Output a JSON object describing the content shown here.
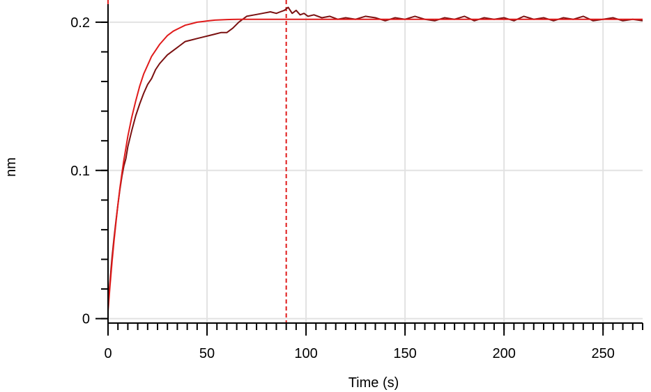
{
  "chart_data": {
    "type": "line",
    "title": "",
    "xlabel": "Time (s)",
    "ylabel": "nm",
    "xlim": [
      0,
      270
    ],
    "ylim": [
      -0.003,
      0.215
    ],
    "x_ticks": [
      0,
      50,
      100,
      150,
      200,
      250
    ],
    "x_tick_labels": [
      "0",
      "50",
      "100",
      "150",
      "200",
      "250"
    ],
    "y_ticks": [
      0,
      0.1,
      0.2
    ],
    "y_tick_labels": [
      "0",
      "0.1",
      "0.2"
    ],
    "x_minor_step": 5,
    "y_minor_step": 0.02,
    "grid": true,
    "legend": "none",
    "vertical_markers": [
      0,
      90
    ],
    "series": [
      {
        "role": "measured",
        "color": "#7a1010",
        "x": [
          0,
          1,
          2,
          3,
          4,
          5,
          6,
          7,
          8,
          9,
          10,
          12,
          14,
          16,
          18,
          20,
          22,
          24,
          26,
          28,
          30,
          33,
          36,
          39,
          42,
          45,
          48,
          51,
          54,
          57,
          60,
          63,
          66,
          70,
          74,
          78,
          82,
          85,
          87,
          89,
          91,
          93,
          95,
          97,
          99,
          101,
          104,
          108,
          112,
          116,
          120,
          125,
          130,
          135,
          140,
          145,
          150,
          155,
          160,
          165,
          170,
          175,
          180,
          185,
          190,
          195,
          200,
          205,
          210,
          215,
          220,
          225,
          230,
          235,
          240,
          245,
          250,
          255,
          260,
          265,
          270
        ],
        "y": [
          0.008,
          0.025,
          0.041,
          0.054,
          0.066,
          0.077,
          0.087,
          0.096,
          0.103,
          0.108,
          0.116,
          0.127,
          0.137,
          0.145,
          0.152,
          0.158,
          0.162,
          0.168,
          0.172,
          0.175,
          0.178,
          0.181,
          0.184,
          0.187,
          0.188,
          0.189,
          0.19,
          0.191,
          0.192,
          0.193,
          0.193,
          0.196,
          0.2,
          0.204,
          0.205,
          0.206,
          0.207,
          0.206,
          0.207,
          0.208,
          0.21,
          0.206,
          0.208,
          0.205,
          0.206,
          0.204,
          0.205,
          0.203,
          0.204,
          0.202,
          0.203,
          0.202,
          0.204,
          0.203,
          0.201,
          0.203,
          0.202,
          0.204,
          0.202,
          0.201,
          0.203,
          0.202,
          0.204,
          0.201,
          0.203,
          0.202,
          0.203,
          0.201,
          0.204,
          0.202,
          0.203,
          0.201,
          0.203,
          0.202,
          0.204,
          0.201,
          0.202,
          0.203,
          0.201,
          0.202,
          0.201
        ]
      },
      {
        "role": "fit",
        "color": "#e01b1b",
        "x": [
          0,
          1,
          2,
          3,
          4,
          5,
          6,
          7,
          8,
          9,
          10,
          12,
          14,
          16,
          18,
          20,
          22,
          24,
          26,
          28,
          30,
          33,
          36,
          39,
          42,
          45,
          48,
          51,
          54,
          57,
          60,
          63,
          66,
          70,
          75,
          80,
          90,
          100,
          120,
          150,
          200,
          270
        ],
        "y": [
          0.005,
          0.022,
          0.038,
          0.052,
          0.065,
          0.077,
          0.088,
          0.098,
          0.107,
          0.115,
          0.123,
          0.136,
          0.147,
          0.157,
          0.165,
          0.171,
          0.177,
          0.181,
          0.185,
          0.188,
          0.191,
          0.194,
          0.196,
          0.198,
          0.199,
          0.2,
          0.2005,
          0.201,
          0.2014,
          0.2016,
          0.2018,
          0.2019,
          0.202,
          0.202,
          0.202,
          0.202,
          0.202,
          0.202,
          0.202,
          0.202,
          0.202,
          0.202
        ]
      }
    ]
  }
}
